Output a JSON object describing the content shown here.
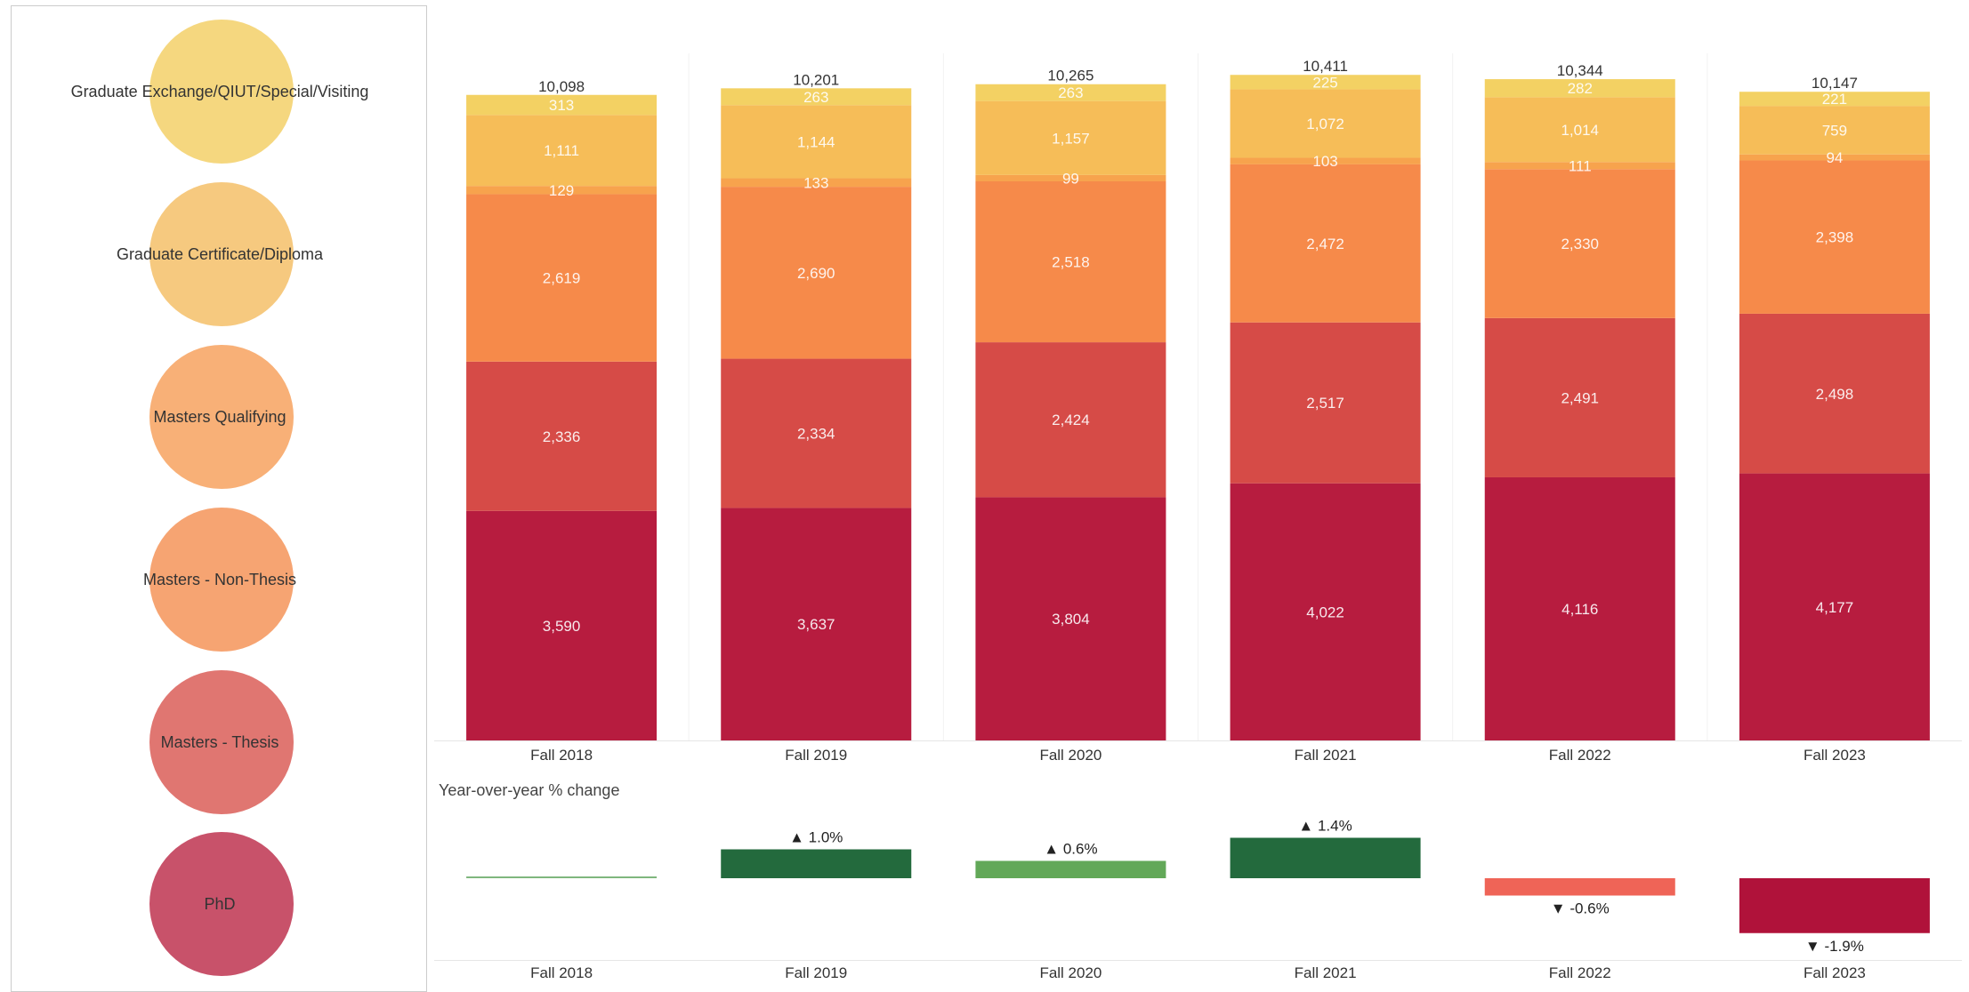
{
  "legend": {
    "items": [
      {
        "label": "Graduate Exchange/QIUT/Special/Visiting",
        "color": "#f5d77f"
      },
      {
        "label": "Graduate Certificate/Diploma",
        "color": "#f6c97f"
      },
      {
        "label": "Masters Qualifying",
        "color": "#f8b077"
      },
      {
        "label": "Masters - Non-Thesis",
        "color": "#f6a472"
      },
      {
        "label": "Masters - Thesis",
        "color": "#e07671"
      },
      {
        "label": "PhD",
        "color": "#c8526a"
      }
    ]
  },
  "chart_data": [
    {
      "type": "bar",
      "stacked": true,
      "categories": [
        "Fall 2018",
        "Fall 2019",
        "Fall 2020",
        "Fall 2021",
        "Fall 2022",
        "Fall 2023"
      ],
      "totals": [
        "10,098",
        "10,201",
        "10,265",
        "10,411",
        "10,344",
        "10,147"
      ],
      "series": [
        {
          "name": "PhD",
          "color": "#b71c3f",
          "values": [
            3590,
            3637,
            3804,
            4022,
            4116,
            4177
          ],
          "labels": [
            "3,590",
            "3,637",
            "3,804",
            "4,022",
            "4,116",
            "4,177"
          ]
        },
        {
          "name": "Masters - Thesis",
          "color": "#d64b47",
          "values": [
            2336,
            2334,
            2424,
            2517,
            2491,
            2498
          ],
          "labels": [
            "2,336",
            "2,334",
            "2,424",
            "2,517",
            "2,491",
            "2,498"
          ]
        },
        {
          "name": "Masters - Non-Thesis",
          "color": "#f68a4a",
          "values": [
            2619,
            2690,
            2518,
            2472,
            2330,
            2398
          ],
          "labels": [
            "2,619",
            "2,690",
            "2,518",
            "2,472",
            "2,330",
            "2,398"
          ]
        },
        {
          "name": "Masters Qualifying",
          "color": "#f7a34d",
          "values": [
            129,
            133,
            99,
            103,
            111,
            94
          ],
          "labels": [
            "129",
            "133",
            "99",
            "103",
            "111",
            "94"
          ]
        },
        {
          "name": "Graduate Certificate/Diploma",
          "color": "#f6bd58",
          "values": [
            1111,
            1144,
            1157,
            1072,
            1014,
            759
          ],
          "labels": [
            "1,111",
            "1,144",
            "1,157",
            "1,072",
            "1,014",
            "759"
          ]
        },
        {
          "name": "Graduate Exchange/QIUT/Special/Visiting",
          "color": "#f3d163",
          "values": [
            313,
            263,
            263,
            225,
            282,
            221
          ],
          "labels": [
            "313",
            "263",
            "263",
            "225",
            "282",
            "221"
          ]
        }
      ]
    },
    {
      "type": "bar",
      "title": "Year-over-year % change",
      "categories": [
        "Fall 2018",
        "Fall 2019",
        "Fall 2020",
        "Fall 2021",
        "Fall 2022",
        "Fall 2023"
      ],
      "values": [
        0,
        1.0,
        0.6,
        1.4,
        -0.6,
        -1.9
      ],
      "labels": [
        "",
        "▲ 1.0%",
        "▲ 0.6%",
        "▲ 1.4%",
        "▼ -0.6%",
        "▼ -1.9%"
      ],
      "colors": [
        "#7fb77e",
        "#236a3d",
        "#62a858",
        "#236a3d",
        "#ef6457",
        "#b0123a"
      ]
    }
  ]
}
